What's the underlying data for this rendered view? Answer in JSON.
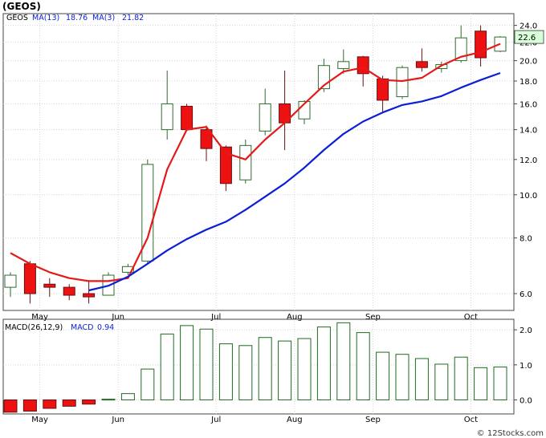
{
  "title": "(GEOS)",
  "watermark": "© 12Stocks.com",
  "colors": {
    "up_fill": "#ffffff",
    "up_stroke": "#2e6b2e",
    "down_fill": "#ee1111",
    "down_stroke": "#661111",
    "ma13": "#0a1fd6",
    "ma3": "#e41a1a",
    "macd_bar": "#1f6b1f",
    "macd_neg": "#ee1111",
    "price_box_bg": "#d9ffd9"
  },
  "chart_data": [
    {
      "type": "candlestick",
      "legend": {
        "symbol": "GEOS",
        "ma13_label": "MA(13)",
        "ma13_value": "18.76",
        "ma3_label": "MA(3)",
        "ma3_value": "21.82"
      },
      "last_price": "22.6",
      "y_scale": "log",
      "ylim": [
        5.5,
        25.5
      ],
      "yticks": [
        "24.0",
        "22.0",
        "20.0",
        "18.0",
        "16.0",
        "14.0",
        "12.0",
        "10.0",
        "8.0",
        "6.0"
      ],
      "xticks": [
        "May",
        "Jun",
        "Jul",
        "Aug",
        "Sep",
        "Oct"
      ],
      "xtick_index": [
        1,
        5,
        10,
        14,
        18,
        23
      ],
      "candles": [
        {
          "o": 6.2,
          "h": 6.7,
          "l": 5.9,
          "c": 6.6
        },
        {
          "o": 7.0,
          "h": 7.1,
          "l": 5.7,
          "c": 6.0
        },
        {
          "o": 6.3,
          "h": 6.5,
          "l": 5.9,
          "c": 6.2
        },
        {
          "o": 6.2,
          "h": 6.3,
          "l": 5.8,
          "c": 5.95
        },
        {
          "o": 6.0,
          "h": 6.4,
          "l": 5.7,
          "c": 5.9
        },
        {
          "o": 5.95,
          "h": 6.7,
          "l": 5.95,
          "c": 6.6
        },
        {
          "o": 6.7,
          "h": 7.0,
          "l": 6.6,
          "c": 6.9
        },
        {
          "o": 7.1,
          "h": 12.0,
          "l": 7.0,
          "c": 11.7
        },
        {
          "o": 14.0,
          "h": 19.0,
          "l": 13.3,
          "c": 16.0
        },
        {
          "o": 15.8,
          "h": 16.0,
          "l": 13.9,
          "c": 14.0
        },
        {
          "o": 14.0,
          "h": 14.3,
          "l": 11.9,
          "c": 12.7
        },
        {
          "o": 12.8,
          "h": 12.9,
          "l": 10.2,
          "c": 10.6
        },
        {
          "o": 10.8,
          "h": 13.3,
          "l": 10.6,
          "c": 12.9
        },
        {
          "o": 13.9,
          "h": 17.3,
          "l": 13.6,
          "c": 16.0
        },
        {
          "o": 16.0,
          "h": 19.0,
          "l": 12.6,
          "c": 14.5
        },
        {
          "o": 14.8,
          "h": 16.3,
          "l": 14.4,
          "c": 16.2
        },
        {
          "o": 17.3,
          "h": 20.2,
          "l": 17.0,
          "c": 19.5
        },
        {
          "o": 19.2,
          "h": 21.2,
          "l": 18.7,
          "c": 19.9
        },
        {
          "o": 20.4,
          "h": 20.5,
          "l": 17.5,
          "c": 18.7
        },
        {
          "o": 18.2,
          "h": 18.5,
          "l": 15.3,
          "c": 16.3
        },
        {
          "o": 16.6,
          "h": 19.5,
          "l": 16.4,
          "c": 19.3
        },
        {
          "o": 19.9,
          "h": 21.3,
          "l": 18.9,
          "c": 19.3
        },
        {
          "o": 19.2,
          "h": 19.9,
          "l": 18.8,
          "c": 19.6
        },
        {
          "o": 20.0,
          "h": 24.0,
          "l": 19.8,
          "c": 22.5
        },
        {
          "o": 23.3,
          "h": 24.0,
          "l": 19.4,
          "c": 20.3
        },
        {
          "o": 21.0,
          "h": 22.7,
          "l": 20.9,
          "c": 22.6
        }
      ],
      "ma13": [
        null,
        null,
        null,
        null,
        6.1,
        6.25,
        6.55,
        7.0,
        7.5,
        7.95,
        8.35,
        8.7,
        9.25,
        9.9,
        10.6,
        11.5,
        12.6,
        13.7,
        14.6,
        15.3,
        15.9,
        16.2,
        16.65,
        17.4,
        18.1,
        18.76
      ],
      "ma3": [
        7.4,
        7.0,
        6.7,
        6.5,
        6.4,
        6.4,
        6.5,
        8.0,
        11.4,
        14.0,
        14.2,
        12.4,
        12.0,
        13.3,
        14.5,
        16.0,
        17.6,
        18.9,
        19.3,
        18.1,
        18.0,
        18.3,
        19.5,
        20.4,
        20.9,
        21.82
      ]
    },
    {
      "type": "bar",
      "title": "MACD(26,12,9)",
      "value_label": "MACD",
      "value": "0.94",
      "ylim": [
        -0.4,
        2.3
      ],
      "yticks": [
        "2.0",
        "1.0",
        "0.0"
      ],
      "xticks": [
        "May",
        "Jun",
        "Jul",
        "Aug",
        "Sep",
        "Oct"
      ],
      "values": [
        -0.35,
        -0.32,
        -0.24,
        -0.18,
        -0.12,
        0.02,
        0.18,
        0.88,
        1.88,
        2.12,
        2.02,
        1.6,
        1.55,
        1.78,
        1.68,
        1.75,
        2.08,
        2.2,
        1.92,
        1.36,
        1.3,
        1.18,
        1.02,
        1.22,
        0.92,
        0.94
      ]
    }
  ]
}
